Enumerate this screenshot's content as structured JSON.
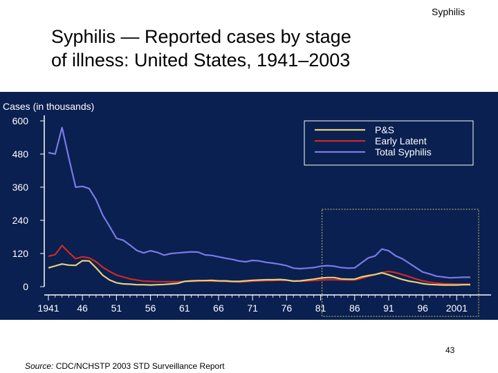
{
  "header": {
    "corner_label": "Syphilis"
  },
  "slide": {
    "title_line1": "Syphilis — Reported cases by stage",
    "title_line2": "of illness: United States, 1941–2003",
    "page_number": "43",
    "source_label": "Source:",
    "source_text": " CDC/NCHSTP 2003 STD Surveillance Report"
  },
  "colors": {
    "background": "#0a2050",
    "ps": "#e6d27a",
    "early_latent": "#d02828",
    "total": "#7a7ae8",
    "highlight_box": "#c8d060"
  },
  "chart_data": {
    "type": "line",
    "ylabel": "Cases (in thousands)",
    "ylim": [
      0,
      600
    ],
    "yticks": [
      0,
      120,
      240,
      360,
      480,
      600
    ],
    "xlim": [
      1941,
      2003
    ],
    "xticks": [
      "1941",
      "46",
      "51",
      "56",
      "61",
      "66",
      "71",
      "76",
      "81",
      "86",
      "91",
      "96",
      "2001"
    ],
    "xtick_values": [
      1941,
      1946,
      1951,
      1956,
      1961,
      1966,
      1971,
      1976,
      1981,
      1986,
      1991,
      1996,
      2001
    ],
    "legend_position": "top-right",
    "highlight_range": [
      1981,
      2003
    ],
    "x": [
      1941,
      1942,
      1943,
      1944,
      1945,
      1946,
      1947,
      1948,
      1949,
      1950,
      1951,
      1952,
      1953,
      1954,
      1955,
      1956,
      1957,
      1958,
      1959,
      1960,
      1961,
      1962,
      1963,
      1964,
      1965,
      1966,
      1967,
      1968,
      1969,
      1970,
      1971,
      1972,
      1973,
      1974,
      1975,
      1976,
      1977,
      1978,
      1979,
      1980,
      1981,
      1982,
      1983,
      1984,
      1985,
      1986,
      1987,
      1988,
      1989,
      1990,
      1991,
      1992,
      1993,
      1994,
      1995,
      1996,
      1997,
      1998,
      1999,
      2000,
      2001,
      2002,
      2003
    ],
    "series": [
      {
        "name": "P&S",
        "values": [
          68,
          75,
          82,
          78,
          77,
          94,
          93,
          68,
          41,
          24,
          14,
          10,
          9,
          7,
          7,
          6,
          7,
          8,
          10,
          12,
          19,
          21,
          22,
          22,
          23,
          21,
          21,
          19,
          19,
          21,
          23,
          24,
          25,
          25,
          26,
          24,
          20,
          21,
          24,
          27,
          31,
          33,
          33,
          28,
          27,
          27,
          35,
          40,
          44,
          50,
          43,
          34,
          26,
          20,
          16,
          11,
          8,
          7,
          6,
          6,
          6,
          7,
          7
        ]
      },
      {
        "name": "Early Latent",
        "values": [
          110,
          116,
          149,
          124,
          101,
          108,
          104,
          90,
          70,
          55,
          42,
          35,
          28,
          24,
          20,
          19,
          18,
          18,
          18,
          18,
          19,
          19,
          20,
          21,
          20,
          20,
          19,
          18,
          17,
          18,
          20,
          21,
          22,
          22,
          23,
          23,
          21,
          20,
          21,
          22,
          24,
          25,
          25,
          24,
          24,
          24,
          30,
          37,
          44,
          51,
          55,
          51,
          44,
          36,
          28,
          21,
          16,
          13,
          11,
          10,
          9,
          9,
          9
        ]
      },
      {
        "name": "Total Syphilis",
        "values": [
          485,
          480,
          576,
          466,
          360,
          363,
          355,
          315,
          258,
          218,
          175,
          168,
          150,
          131,
          122,
          130,
          124,
          114,
          120,
          122,
          124,
          126,
          125,
          115,
          113,
          108,
          103,
          99,
          93,
          90,
          95,
          93,
          88,
          85,
          81,
          76,
          67,
          65,
          67,
          69,
          74,
          76,
          74,
          69,
          67,
          68,
          86,
          104,
          111,
          136,
          130,
          112,
          101,
          85,
          69,
          53,
          46,
          38,
          35,
          32,
          33,
          34,
          34
        ]
      }
    ]
  }
}
